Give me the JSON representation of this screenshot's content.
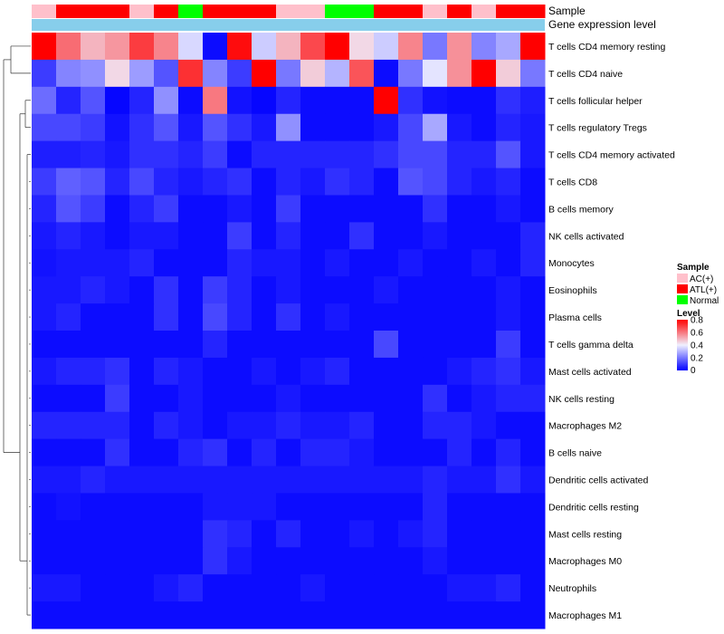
{
  "chart_data": {
    "type": "heatmap",
    "title": "",
    "annotations": {
      "sample_label": "Sample",
      "gene_label": "Gene expression level",
      "sample_track": [
        "AC(+)",
        "ATL(+)",
        "ATL(+)",
        "ATL(+)",
        "AC(+)",
        "ATL(+)",
        "Normal",
        "ATL(+)",
        "ATL(+)",
        "ATL(+)",
        "AC(+)",
        "AC(+)",
        "Normal",
        "Normal",
        "ATL(+)",
        "ATL(+)",
        "AC(+)",
        "ATL(+)",
        "AC(+)",
        "ATL(+)",
        "ATL(+)"
      ],
      "gene_track_color": "#87ceeb"
    },
    "rows": [
      "T cells CD4 memory resting",
      "T cells CD4 naive",
      "T cells follicular helper",
      "T cells regulatory  Tregs",
      "T cells CD4 memory activated",
      "T cells CD8",
      "B cells memory",
      "NK cells activated",
      "Monocytes",
      "Eosinophils",
      "Plasma cells",
      "T cells gamma delta",
      "Mast cells activated",
      "NK cells resting",
      "Macrophages M2",
      "B cells naive",
      "Dendritic cells activated",
      "Dendritic cells resting",
      "Mast cells resting",
      "Macrophages M0",
      "Neutrophils",
      "Macrophages M1"
    ],
    "values": [
      [
        0.8,
        0.62,
        0.5,
        0.55,
        0.7,
        0.58,
        0.36,
        0.02,
        0.78,
        0.34,
        0.5,
        0.68,
        0.8,
        0.44,
        0.34,
        0.58,
        0.2,
        0.56,
        0.22,
        0.28,
        0.8
      ],
      [
        0.1,
        0.22,
        0.24,
        0.44,
        0.26,
        0.14,
        0.72,
        0.22,
        0.1,
        0.8,
        0.2,
        0.46,
        0.3,
        0.66,
        0.02,
        0.2,
        0.38,
        0.56,
        0.8,
        0.46,
        0.2
      ],
      [
        0.18,
        0.06,
        0.14,
        0.01,
        0.06,
        0.24,
        0.02,
        0.6,
        0.03,
        0.01,
        0.06,
        0.02,
        0.02,
        0.02,
        0.8,
        0.08,
        0.03,
        0.02,
        0.02,
        0.08,
        0.05
      ],
      [
        0.12,
        0.12,
        0.1,
        0.03,
        0.08,
        0.14,
        0.04,
        0.14,
        0.08,
        0.04,
        0.24,
        0.02,
        0.02,
        0.02,
        0.04,
        0.12,
        0.28,
        0.04,
        0.02,
        0.06,
        0.04
      ],
      [
        0.05,
        0.05,
        0.06,
        0.04,
        0.08,
        0.08,
        0.06,
        0.1,
        0.02,
        0.06,
        0.06,
        0.06,
        0.06,
        0.06,
        0.08,
        0.12,
        0.12,
        0.06,
        0.06,
        0.14,
        0.04
      ],
      [
        0.1,
        0.16,
        0.14,
        0.06,
        0.12,
        0.06,
        0.04,
        0.06,
        0.08,
        0.02,
        0.06,
        0.04,
        0.08,
        0.06,
        0.02,
        0.14,
        0.12,
        0.06,
        0.04,
        0.06,
        0.02
      ],
      [
        0.06,
        0.14,
        0.1,
        0.02,
        0.06,
        0.1,
        0.02,
        0.02,
        0.04,
        0.02,
        0.1,
        0.02,
        0.02,
        0.02,
        0.02,
        0.02,
        0.08,
        0.02,
        0.02,
        0.04,
        0.02
      ],
      [
        0.04,
        0.06,
        0.04,
        0.02,
        0.04,
        0.04,
        0.02,
        0.02,
        0.1,
        0.02,
        0.06,
        0.02,
        0.02,
        0.08,
        0.02,
        0.02,
        0.04,
        0.02,
        0.02,
        0.02,
        0.06
      ],
      [
        0.03,
        0.04,
        0.04,
        0.04,
        0.06,
        0.02,
        0.02,
        0.02,
        0.06,
        0.04,
        0.04,
        0.02,
        0.04,
        0.02,
        0.02,
        0.04,
        0.02,
        0.02,
        0.04,
        0.02,
        0.06
      ],
      [
        0.04,
        0.04,
        0.06,
        0.04,
        0.02,
        0.08,
        0.02,
        0.1,
        0.06,
        0.02,
        0.04,
        0.02,
        0.02,
        0.02,
        0.04,
        0.02,
        0.02,
        0.02,
        0.02,
        0.04,
        0.02
      ],
      [
        0.04,
        0.06,
        0.02,
        0.02,
        0.02,
        0.08,
        0.02,
        0.12,
        0.06,
        0.02,
        0.08,
        0.02,
        0.04,
        0.02,
        0.02,
        0.02,
        0.02,
        0.02,
        0.02,
        0.04,
        0.02
      ],
      [
        0.02,
        0.02,
        0.02,
        0.02,
        0.02,
        0.02,
        0.02,
        0.06,
        0.02,
        0.02,
        0.02,
        0.02,
        0.02,
        0.02,
        0.12,
        0.02,
        0.02,
        0.02,
        0.02,
        0.1,
        0.02
      ],
      [
        0.04,
        0.06,
        0.06,
        0.08,
        0.02,
        0.06,
        0.04,
        0.02,
        0.02,
        0.04,
        0.02,
        0.04,
        0.06,
        0.02,
        0.02,
        0.02,
        0.02,
        0.04,
        0.06,
        0.08,
        0.04
      ],
      [
        0.02,
        0.02,
        0.02,
        0.1,
        0.02,
        0.02,
        0.04,
        0.02,
        0.02,
        0.02,
        0.04,
        0.02,
        0.02,
        0.02,
        0.02,
        0.02,
        0.08,
        0.02,
        0.04,
        0.06,
        0.06
      ],
      [
        0.06,
        0.06,
        0.06,
        0.06,
        0.02,
        0.06,
        0.04,
        0.02,
        0.04,
        0.04,
        0.06,
        0.04,
        0.04,
        0.06,
        0.02,
        0.02,
        0.06,
        0.06,
        0.04,
        0.02,
        0.02
      ],
      [
        0.02,
        0.02,
        0.02,
        0.08,
        0.02,
        0.02,
        0.06,
        0.08,
        0.02,
        0.06,
        0.02,
        0.06,
        0.06,
        0.04,
        0.02,
        0.02,
        0.02,
        0.06,
        0.02,
        0.06,
        0.02
      ],
      [
        0.04,
        0.04,
        0.06,
        0.04,
        0.04,
        0.04,
        0.04,
        0.04,
        0.04,
        0.04,
        0.04,
        0.04,
        0.04,
        0.04,
        0.04,
        0.04,
        0.06,
        0.04,
        0.04,
        0.08,
        0.04
      ],
      [
        0.02,
        0.03,
        0.02,
        0.02,
        0.02,
        0.02,
        0.02,
        0.04,
        0.04,
        0.04,
        0.02,
        0.02,
        0.02,
        0.02,
        0.02,
        0.02,
        0.06,
        0.02,
        0.02,
        0.02,
        0.02
      ],
      [
        0.02,
        0.02,
        0.02,
        0.02,
        0.02,
        0.02,
        0.02,
        0.08,
        0.06,
        0.02,
        0.06,
        0.02,
        0.02,
        0.04,
        0.02,
        0.04,
        0.06,
        0.02,
        0.02,
        0.02,
        0.02
      ],
      [
        0.02,
        0.02,
        0.02,
        0.02,
        0.02,
        0.02,
        0.02,
        0.08,
        0.04,
        0.02,
        0.02,
        0.02,
        0.02,
        0.02,
        0.02,
        0.02,
        0.04,
        0.02,
        0.02,
        0.02,
        0.02
      ],
      [
        0.04,
        0.04,
        0.02,
        0.02,
        0.02,
        0.04,
        0.06,
        0.02,
        0.02,
        0.02,
        0.02,
        0.04,
        0.02,
        0.02,
        0.02,
        0.02,
        0.02,
        0.04,
        0.04,
        0.06,
        0.02
      ],
      [
        0.02,
        0.02,
        0.02,
        0.02,
        0.02,
        0.02,
        0.02,
        0.02,
        0.02,
        0.02,
        0.02,
        0.02,
        0.02,
        0.02,
        0.02,
        0.02,
        0.02,
        0.02,
        0.02,
        0.02,
        0.02
      ]
    ],
    "legend": {
      "sample_title": "Sample",
      "sample_entries": [
        {
          "label": "AC(+)",
          "color": "#ffc0cb"
        },
        {
          "label": "ATL(+)",
          "color": "#ff0000"
        },
        {
          "label": "Normal",
          "color": "#00ff00"
        }
      ],
      "level_title": "Level",
      "level_ticks": [
        "0.8",
        "0.6",
        "0.4",
        "0.2",
        "0"
      ],
      "level_range": [
        0,
        0.8
      ],
      "colors": {
        "low": "#0000ff",
        "mid": "#f0f0ff",
        "high": "#ff0000"
      }
    }
  }
}
